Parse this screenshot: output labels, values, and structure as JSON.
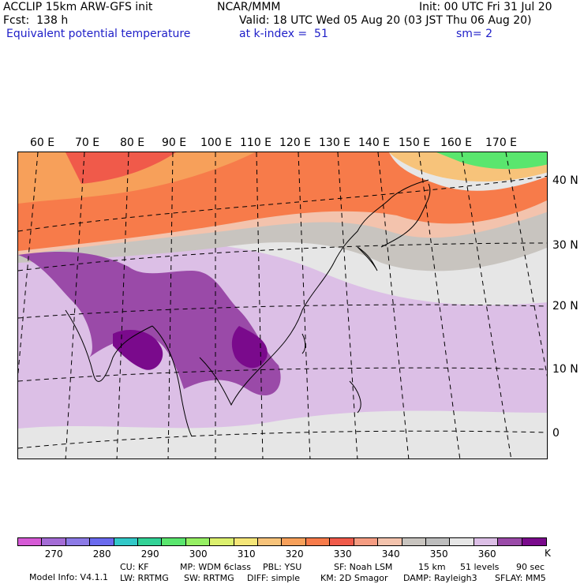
{
  "header": {
    "model_line": "ACCLIP 15km ARW-GFS init",
    "org": "NCAR/MMM",
    "init": "Init: 00 UTC Fri 31 Jul 20",
    "fcst": "Fcst:  138 h",
    "valid": "Valid: 18 UTC Wed 05 Aug 20 (03 JST Thu 06 Aug 20)",
    "field": "Equivalent potential temperature",
    "level": "at k-index =  51",
    "smooth": "sm= 2"
  },
  "map": {
    "lon_labels": [
      "60 E",
      "70 E",
      "80 E",
      "90 E",
      "100 E",
      "110 E",
      "120 E",
      "130 E",
      "140 E",
      "150 E",
      "160 E",
      "170 E"
    ],
    "lat_labels": [
      "40 N",
      "30 N",
      "20 N",
      "10 N",
      "0"
    ]
  },
  "colorbar": {
    "colors": [
      "#d65ad6",
      "#a46cd6",
      "#8c7ae6",
      "#6a6aee",
      "#32c8c8",
      "#32d296",
      "#5ae66e",
      "#96f064",
      "#dcf06e",
      "#f5e678",
      "#f7c37a",
      "#f7a05a",
      "#f77b4a",
      "#f05a4a",
      "#f59c82",
      "#f3c3ad",
      "#c8c4bf",
      "#bdbdbd",
      "#e6e6e6",
      "#dcbfe6",
      "#9a4aa8",
      "#7a0a8c"
    ],
    "tick_labels": [
      "270",
      "280",
      "290",
      "300",
      "310",
      "320",
      "330",
      "340",
      "350",
      "360"
    ],
    "unit": "K"
  },
  "info": {
    "line1": [
      "Model Info: V4.1.1",
      "CU: KF",
      "MP: WDM 6class",
      "PBL: YSU",
      "SF: Noah LSM",
      "15 km",
      "51 levels",
      "90 sec"
    ],
    "line2": [
      "LW: RRTMG",
      "SW: RRTMG",
      "DIFF: simple",
      "KM: 2D Smagor",
      "DAMP: Rayleigh3",
      "SFLAY: MM5"
    ]
  }
}
